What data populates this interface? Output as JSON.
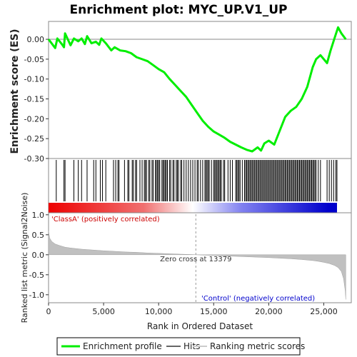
{
  "chart_data": {
    "type": "line",
    "title": "Enrichment plot: MYC_UP.V1_UP",
    "xlabel": "Rank in Ordered Dataset",
    "xlim": [
      0,
      27500
    ],
    "xticks": [
      "0",
      "5,000",
      "10,000",
      "15,000",
      "20,000",
      "25,000"
    ],
    "xtick_values": [
      0,
      5000,
      10000,
      15000,
      20000,
      25000
    ],
    "panels": {
      "enrichment": {
        "ylabel": "Enrichment score (ES)",
        "ylim": [
          -0.3,
          0.045
        ],
        "yticks": [
          "0.00",
          "-0.05",
          "-0.10",
          "-0.15",
          "-0.20",
          "-0.25",
          "-0.30"
        ],
        "ytick_values": [
          0,
          -0.05,
          -0.1,
          -0.15,
          -0.2,
          -0.25,
          -0.3
        ],
        "series": [
          {
            "name": "Enrichment profile",
            "color": "#00ee00",
            "x": [
              0,
              600,
              800,
              1200,
              1400,
              1500,
              2000,
              2300,
              2700,
              3000,
              3300,
              3500,
              3900,
              4300,
              4600,
              4800,
              5200,
              5700,
              6000,
              6500,
              7000,
              7500,
              8000,
              8500,
              9000,
              9500,
              10000,
              10500,
              11000,
              11500,
              12000,
              12500,
              13000,
              13500,
              14000,
              14500,
              15000,
              15500,
              16000,
              16500,
              17000,
              17500,
              18000,
              18500,
              19000,
              19300,
              19600,
              20000,
              20500,
              21000,
              21500,
              22000,
              22500,
              23000,
              23500,
              24000,
              24300,
              24700,
              25300,
              25600,
              26000,
              26300,
              26600,
              27000
            ],
            "y": [
              0,
              -0.022,
              0.002,
              -0.012,
              -0.02,
              0.015,
              -0.015,
              0.002,
              -0.005,
              0.002,
              -0.012,
              0.008,
              -0.01,
              -0.006,
              -0.014,
              0.002,
              -0.01,
              -0.028,
              -0.02,
              -0.028,
              -0.03,
              -0.035,
              -0.045,
              -0.05,
              -0.055,
              -0.065,
              -0.075,
              -0.083,
              -0.1,
              -0.115,
              -0.13,
              -0.145,
              -0.165,
              -0.185,
              -0.205,
              -0.22,
              -0.232,
              -0.24,
              -0.248,
              -0.258,
              -0.265,
              -0.272,
              -0.278,
              -0.282,
              -0.272,
              -0.28,
              -0.262,
              -0.255,
              -0.265,
              -0.23,
              -0.195,
              -0.18,
              -0.17,
              -0.15,
              -0.12,
              -0.07,
              -0.05,
              -0.04,
              -0.06,
              -0.03,
              0.005,
              0.03,
              0.015,
              0.0
            ]
          }
        ]
      },
      "hits": {
        "name": "Hits",
        "color": "#000000",
        "positions": [
          700,
          1400,
          1500,
          2300,
          2700,
          3000,
          3500,
          4100,
          4300,
          4700,
          4900,
          5200,
          5900,
          6100,
          6300,
          6400,
          6900,
          7200,
          7300,
          7600,
          7700,
          7900,
          8000,
          8300,
          8500,
          8700,
          8800,
          8900,
          9100,
          9200,
          9400,
          9500,
          9700,
          9800,
          9900,
          10000,
          10100,
          10300,
          10400,
          10500,
          10600,
          10700,
          10800,
          11000,
          11100,
          11300,
          11400,
          11600,
          11700,
          11800,
          12000,
          12100,
          12300,
          12500,
          12700,
          12900,
          13100,
          13300,
          13500,
          13600,
          13800,
          14000,
          14200,
          14300,
          14400,
          14500,
          14600,
          14800,
          15000,
          15100,
          15200,
          15300,
          15400,
          15500,
          15600,
          15700,
          15900,
          16000,
          16300,
          16500,
          16700,
          17000,
          17100,
          17200,
          17300,
          17400,
          17600,
          17800,
          17900,
          18000,
          18100,
          18200,
          18300,
          18400,
          18500,
          18600,
          18700,
          18800,
          18900,
          19000,
          19100,
          19200,
          19300,
          19400,
          19500,
          19600,
          19700,
          19800,
          19900,
          20000,
          20100,
          20200,
          20300,
          20400,
          20500,
          20600,
          20700,
          20800,
          20900,
          21000,
          21100,
          21200,
          21300,
          21400,
          21500,
          21600,
          21700,
          21800,
          21900,
          22000,
          22100,
          22200,
          22300,
          22400,
          22500,
          22600,
          22700,
          22800,
          22900,
          23000,
          23100,
          23200,
          23300,
          23400,
          23500,
          23600,
          23700,
          23800,
          23900,
          24000,
          24100,
          24200,
          24300,
          24500,
          24700,
          25300,
          25500,
          25700,
          25900,
          26100,
          26200
        ]
      },
      "ranked_metric": {
        "ylabel": "Ranked list metric (Signal2Noise)",
        "ylim": [
          -1.2,
          1.05
        ],
        "yticks": [
          "1.0",
          "0.5",
          "0.0",
          "-0.5",
          "-1.0"
        ],
        "ytick_values": [
          1.0,
          0.5,
          0.0,
          -0.5,
          -1.0
        ],
        "name": "Ranking metric scores",
        "fill_color": "#c0c0c0",
        "x": [
          0,
          100,
          300,
          600,
          1000,
          1500,
          2000,
          3000,
          4000,
          5000,
          6000,
          7000,
          8000,
          9000,
          10000,
          11000,
          12000,
          13000,
          13379,
          14000,
          15000,
          16000,
          17000,
          18000,
          19000,
          20000,
          21000,
          22000,
          23000,
          24000,
          24500,
          25000,
          25500,
          26000,
          26300,
          26600,
          26800,
          26950,
          27000
        ],
        "y": [
          0.6,
          0.42,
          0.33,
          0.27,
          0.23,
          0.19,
          0.17,
          0.14,
          0.12,
          0.1,
          0.085,
          0.07,
          0.06,
          0.045,
          0.035,
          0.025,
          0.015,
          0.005,
          0.0,
          -0.008,
          -0.018,
          -0.03,
          -0.04,
          -0.05,
          -0.06,
          -0.072,
          -0.085,
          -0.1,
          -0.12,
          -0.145,
          -0.165,
          -0.19,
          -0.22,
          -0.27,
          -0.32,
          -0.42,
          -0.6,
          -0.9,
          -1.12
        ]
      }
    },
    "annotations": {
      "classA": "'ClassA' (positively correlated)",
      "control": "'Control' (negatively correlated)",
      "zero_cross": "Zero cross at 13379",
      "zero_cross_value": 13379
    },
    "legend": {
      "placement": "bottom",
      "items": [
        {
          "label": "Enrichment profile",
          "color": "#00ee00"
        },
        {
          "label": "Hits",
          "color": "#666666"
        },
        {
          "label": "Ranking metric scores",
          "color": "#cccccc"
        }
      ]
    },
    "colors": {
      "positive_end": "#ee0000",
      "neutral": "#ffffff",
      "negative_end": "#0000cc",
      "classA_text": "#cc0000",
      "control_text": "#0000cc"
    }
  }
}
